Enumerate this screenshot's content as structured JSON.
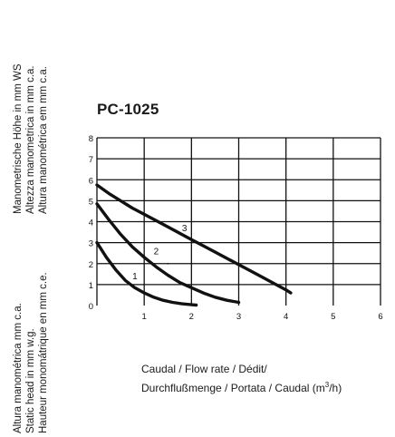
{
  "left_labels_top": [
    "Manometrische Höhe in mm WS",
    "Altezza manometrica in mm c.a.",
    "Altura manométrica em mm c.a."
  ],
  "left_labels_bottom": [
    "Altura manométrica mm c.a.",
    "Static head in mm w.g.",
    "Hauteur monomátrique en mm c.e."
  ],
  "xcaption": {
    "line1": "Caudal / Flow rate / Dédit/",
    "line2_main": "Durchflußmenge / Portata / Caudal (m",
    "line2_sup": "3",
    "line2_end": "/h)"
  },
  "chart_data": {
    "type": "line",
    "title": "PC-1025",
    "xlim": [
      0,
      6
    ],
    "ylim": [
      0,
      8
    ],
    "x_ticks": [
      "1",
      "2",
      "3",
      "4",
      "5",
      "6"
    ],
    "y_ticks": [
      "0",
      "1",
      "2",
      "3",
      "4",
      "5",
      "6",
      "7",
      "8"
    ],
    "grid": true,
    "series": [
      {
        "name": "1",
        "x": [
          0,
          0.2,
          0.4,
          0.6,
          0.8,
          1.0,
          1.2,
          1.4,
          1.6,
          1.8,
          2.0,
          2.1
        ],
        "y": [
          3.0,
          2.3,
          1.7,
          1.2,
          0.85,
          0.6,
          0.4,
          0.25,
          0.15,
          0.08,
          0.04,
          0.02
        ]
      },
      {
        "name": "2",
        "x": [
          0,
          0.25,
          0.5,
          0.75,
          1.0,
          1.25,
          1.5,
          1.75,
          2.0,
          2.25,
          2.5,
          2.75,
          3.0
        ],
        "y": [
          4.85,
          4.1,
          3.4,
          2.8,
          2.3,
          1.85,
          1.45,
          1.1,
          0.85,
          0.6,
          0.4,
          0.25,
          0.15
        ]
      },
      {
        "name": "3",
        "x": [
          0,
          0.25,
          0.5,
          0.75,
          1.0,
          1.25,
          1.5,
          1.75,
          2.0,
          2.25,
          2.5,
          2.75,
          3.0,
          3.25,
          3.5,
          3.75,
          4.0,
          4.1
        ],
        "y": [
          5.75,
          5.35,
          5.0,
          4.65,
          4.35,
          4.05,
          3.75,
          3.45,
          3.15,
          2.85,
          2.55,
          2.25,
          1.95,
          1.65,
          1.35,
          1.05,
          0.75,
          0.6
        ]
      }
    ]
  }
}
